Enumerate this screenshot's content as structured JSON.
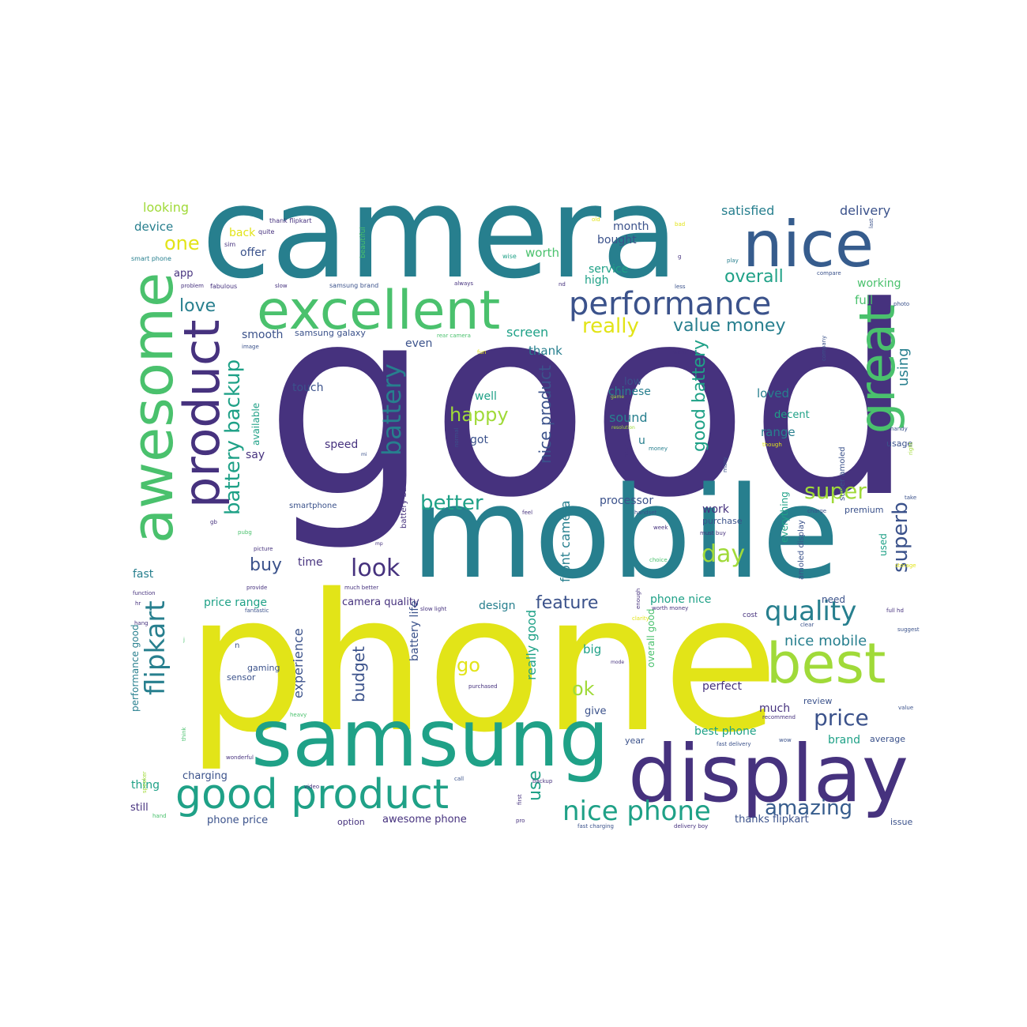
{
  "palette": {
    "indigo": "#46327e",
    "blue": "#365c8d",
    "steel": "#3b528b",
    "teal": "#277f8e",
    "sea": "#1fa187",
    "green": "#4ac16d",
    "lime": "#a0da39",
    "yellow": "#e2e418",
    "background": "#ffffff"
  },
  "words": [
    {
      "text": "good",
      "color": "indigo",
      "vertical": false
    },
    {
      "text": "phone",
      "color": "yellow",
      "vertical": false
    },
    {
      "text": "camera",
      "color": "teal",
      "vertical": false
    },
    {
      "text": "mobile",
      "color": "teal",
      "vertical": false
    },
    {
      "text": "samsung",
      "color": "sea",
      "vertical": false
    },
    {
      "text": "display",
      "color": "indigo",
      "vertical": false
    },
    {
      "text": "awesome",
      "color": "green",
      "vertical": true
    },
    {
      "text": "product",
      "color": "indigo",
      "vertical": true
    },
    {
      "text": "nice",
      "color": "blue",
      "vertical": false
    },
    {
      "text": "excellent",
      "color": "green",
      "vertical": false
    },
    {
      "text": "best",
      "color": "lime",
      "vertical": false
    },
    {
      "text": "great",
      "color": "green",
      "vertical": true
    },
    {
      "text": "performance",
      "color": "steel",
      "vertical": false
    },
    {
      "text": "good product",
      "color": "sea",
      "vertical": false
    },
    {
      "text": "flipkart",
      "color": "teal",
      "vertical": true
    },
    {
      "text": "nice phone",
      "color": "sea",
      "vertical": false
    },
    {
      "text": "quality",
      "color": "teal",
      "vertical": false
    },
    {
      "text": "battery backup",
      "color": "sea",
      "vertical": true
    },
    {
      "text": "battery",
      "color": "teal",
      "vertical": true
    },
    {
      "text": "better",
      "color": "sea",
      "vertical": false
    },
    {
      "text": "price",
      "color": "steel",
      "vertical": false
    },
    {
      "text": "amazing",
      "color": "blue",
      "vertical": false
    },
    {
      "text": "look",
      "color": "indigo",
      "vertical": false
    },
    {
      "text": "day",
      "color": "lime",
      "vertical": false
    },
    {
      "text": "super",
      "color": "lime",
      "vertical": false
    },
    {
      "text": "superb",
      "color": "steel",
      "vertical": true
    },
    {
      "text": "happy",
      "color": "lime",
      "vertical": false
    },
    {
      "text": "nice product",
      "color": "steel",
      "vertical": true
    },
    {
      "text": "good battery",
      "color": "sea",
      "vertical": true
    },
    {
      "text": "value money",
      "color": "teal",
      "vertical": false
    },
    {
      "text": "really",
      "color": "yellow",
      "vertical": false
    },
    {
      "text": "overall",
      "color": "sea",
      "vertical": false
    },
    {
      "text": "love",
      "color": "teal",
      "vertical": false
    },
    {
      "text": "buy",
      "color": "steel",
      "vertical": false
    },
    {
      "text": "one",
      "color": "yellow",
      "vertical": false
    },
    {
      "text": "feature",
      "color": "steel",
      "vertical": false
    },
    {
      "text": "budget",
      "color": "steel",
      "vertical": true
    },
    {
      "text": "go",
      "color": "yellow",
      "vertical": false
    },
    {
      "text": "ok",
      "color": "lime",
      "vertical": false
    },
    {
      "text": "use",
      "color": "sea",
      "vertical": true
    },
    {
      "text": "using",
      "color": "teal",
      "vertical": true
    },
    {
      "text": "nice mobile",
      "color": "teal",
      "vertical": false
    },
    {
      "text": "experience",
      "color": "steel",
      "vertical": true
    },
    {
      "text": "front camera",
      "color": "teal",
      "vertical": true
    },
    {
      "text": "really good",
      "color": "sea",
      "vertical": true
    },
    {
      "text": "satisfied",
      "color": "teal",
      "vertical": false
    },
    {
      "text": "delivery",
      "color": "steel",
      "vertical": false
    },
    {
      "text": "looking",
      "color": "lime",
      "vertical": false
    },
    {
      "text": "device",
      "color": "teal",
      "vertical": false
    },
    {
      "text": "back",
      "color": "yellow",
      "vertical": false
    },
    {
      "text": "offer",
      "color": "steel",
      "vertical": false
    },
    {
      "text": "app",
      "color": "indigo",
      "vertical": false
    },
    {
      "text": "month",
      "color": "steel",
      "vertical": false
    },
    {
      "text": "bought",
      "color": "steel",
      "vertical": false
    },
    {
      "text": "worth",
      "color": "green",
      "vertical": false
    },
    {
      "text": "service",
      "color": "sea",
      "vertical": false
    },
    {
      "text": "high",
      "color": "sea",
      "vertical": false
    },
    {
      "text": "working",
      "color": "green",
      "vertical": false
    },
    {
      "text": "full",
      "color": "green",
      "vertical": false
    },
    {
      "text": "screen",
      "color": "sea",
      "vertical": false
    },
    {
      "text": "thank",
      "color": "teal",
      "vertical": false
    },
    {
      "text": "even",
      "color": "steel",
      "vertical": false
    },
    {
      "text": "smooth",
      "color": "steel",
      "vertical": false
    },
    {
      "text": "samsung galaxy",
      "color": "steel",
      "vertical": false
    },
    {
      "text": "touch",
      "color": "steel",
      "vertical": false
    },
    {
      "text": "well",
      "color": "sea",
      "vertical": false
    },
    {
      "text": "low",
      "color": "steel",
      "vertical": false
    },
    {
      "text": "chinese",
      "color": "teal",
      "vertical": false
    },
    {
      "text": "sound",
      "color": "teal",
      "vertical": false
    },
    {
      "text": "loved",
      "color": "teal",
      "vertical": false
    },
    {
      "text": "decent",
      "color": "sea",
      "vertical": false
    },
    {
      "text": "range",
      "color": "teal",
      "vertical": false
    },
    {
      "text": "speed",
      "color": "indigo",
      "vertical": false
    },
    {
      "text": "got",
      "color": "steel",
      "vertical": false
    },
    {
      "text": "u",
      "color": "teal",
      "vertical": false
    },
    {
      "text": "available",
      "color": "sea",
      "vertical": true
    },
    {
      "text": "say",
      "color": "indigo",
      "vertical": false
    },
    {
      "text": "smartphone",
      "color": "steel",
      "vertical": false
    },
    {
      "text": "processor",
      "color": "steel",
      "vertical": false
    },
    {
      "text": "work",
      "color": "indigo",
      "vertical": false
    },
    {
      "text": "purchase",
      "color": "steel",
      "vertical": false
    },
    {
      "text": "premium",
      "color": "steel",
      "vertical": false
    },
    {
      "text": "usage",
      "color": "steel",
      "vertical": false
    },
    {
      "text": "used",
      "color": "sea",
      "vertical": true
    },
    {
      "text": "everything",
      "color": "sea",
      "vertical": true
    },
    {
      "text": "amoled display",
      "color": "steel",
      "vertical": true
    },
    {
      "text": "super amoled",
      "color": "steel",
      "vertical": true
    },
    {
      "text": "time",
      "color": "indigo",
      "vertical": false
    },
    {
      "text": "fast",
      "color": "teal",
      "vertical": false
    },
    {
      "text": "price range",
      "color": "sea",
      "vertical": false
    },
    {
      "text": "camera quality",
      "color": "indigo",
      "vertical": false
    },
    {
      "text": "design",
      "color": "teal",
      "vertical": false
    },
    {
      "text": "phone nice",
      "color": "sea",
      "vertical": false
    },
    {
      "text": "need",
      "color": "steel",
      "vertical": false
    },
    {
      "text": "cost",
      "color": "indigo",
      "vertical": false
    },
    {
      "text": "performance good",
      "color": "teal",
      "vertical": true
    },
    {
      "text": "gaming",
      "color": "steel",
      "vertical": false
    },
    {
      "text": "sensor",
      "color": "steel",
      "vertical": false
    },
    {
      "text": "n",
      "color": "steel",
      "vertical": false
    },
    {
      "text": "battery life",
      "color": "steel",
      "vertical": true
    },
    {
      "text": "overall good",
      "color": "green",
      "vertical": true
    },
    {
      "text": "big",
      "color": "sea",
      "vertical": false
    },
    {
      "text": "perfect",
      "color": "indigo",
      "vertical": false
    },
    {
      "text": "much",
      "color": "indigo",
      "vertical": false
    },
    {
      "text": "review",
      "color": "steel",
      "vertical": false
    },
    {
      "text": "give",
      "color": "steel",
      "vertical": false
    },
    {
      "text": "best phone",
      "color": "sea",
      "vertical": false
    },
    {
      "text": "year",
      "color": "steel",
      "vertical": false
    },
    {
      "text": "brand",
      "color": "sea",
      "vertical": false
    },
    {
      "text": "average",
      "color": "steel",
      "vertical": false
    },
    {
      "text": "thing",
      "color": "sea",
      "vertical": false
    },
    {
      "text": "charging",
      "color": "steel",
      "vertical": false
    },
    {
      "text": "still",
      "color": "indigo",
      "vertical": false
    },
    {
      "text": "phone price",
      "color": "steel",
      "vertical": false
    },
    {
      "text": "option",
      "color": "indigo",
      "vertical": false
    },
    {
      "text": "awesome phone",
      "color": "indigo",
      "vertical": false
    },
    {
      "text": "thanks flipkart",
      "color": "steel",
      "vertical": false
    },
    {
      "text": "issue",
      "color": "steel",
      "vertical": false
    },
    {
      "text": "battery back",
      "color": "indigo",
      "vertical": true
    },
    {
      "text": "thank flipkart",
      "color": "indigo",
      "vertical": false
    },
    {
      "text": "quite",
      "color": "indigo",
      "vertical": false
    },
    {
      "text": "sim",
      "color": "indigo",
      "vertical": false
    },
    {
      "text": "smart phone",
      "color": "teal",
      "vertical": false
    },
    {
      "text": "problem",
      "color": "indigo",
      "vertical": false
    },
    {
      "text": "fabulous",
      "color": "indigo",
      "vertical": false
    },
    {
      "text": "slow",
      "color": "indigo",
      "vertical": false
    },
    {
      "text": "samsung brand",
      "color": "steel",
      "vertical": false
    },
    {
      "text": "beautiful",
      "color": "green",
      "vertical": true
    },
    {
      "text": "always",
      "color": "indigo",
      "vertical": false
    },
    {
      "text": "nd",
      "color": "indigo",
      "vertical": false
    },
    {
      "text": "wise",
      "color": "sea",
      "vertical": false
    },
    {
      "text": "old",
      "color": "yellow",
      "vertical": false
    },
    {
      "text": "bad",
      "color": "yellow",
      "vertical": false
    },
    {
      "text": "g",
      "color": "indigo",
      "vertical": false
    },
    {
      "text": "less",
      "color": "steel",
      "vertical": false
    },
    {
      "text": "play",
      "color": "teal",
      "vertical": false
    },
    {
      "text": "compare",
      "color": "steel",
      "vertical": false
    },
    {
      "text": "photo",
      "color": "steel",
      "vertical": false
    },
    {
      "text": "last",
      "color": "steel",
      "vertical": true
    },
    {
      "text": "image",
      "color": "steel",
      "vertical": false
    },
    {
      "text": "rear camera",
      "color": "green",
      "vertical": false
    },
    {
      "text": "want",
      "color": "indigo",
      "vertical": false
    },
    {
      "text": "game",
      "color": "lime",
      "vertical": false
    },
    {
      "text": "resolution",
      "color": "lime",
      "vertical": false
    },
    {
      "text": "though",
      "color": "yellow",
      "vertical": false
    },
    {
      "text": "company",
      "color": "steel",
      "vertical": true
    },
    {
      "text": "handy",
      "color": "steel",
      "vertical": false
    },
    {
      "text": "right",
      "color": "lime",
      "vertical": true
    },
    {
      "text": "mi",
      "color": "steel",
      "vertical": false
    },
    {
      "text": "normal",
      "color": "steel",
      "vertical": true
    },
    {
      "text": "hour",
      "color": "indigo",
      "vertical": true
    },
    {
      "text": "money",
      "color": "teal",
      "vertical": false
    },
    {
      "text": "many",
      "color": "steel",
      "vertical": true
    },
    {
      "text": "take",
      "color": "steel",
      "vertical": false
    },
    {
      "text": "charge",
      "color": "steel",
      "vertical": false
    },
    {
      "text": "week",
      "color": "indigo",
      "vertical": false
    },
    {
      "text": "handset",
      "color": "steel",
      "vertical": false
    },
    {
      "text": "must buy",
      "color": "indigo",
      "vertical": false
    },
    {
      "text": "feel",
      "color": "indigo",
      "vertical": false
    },
    {
      "text": "storage",
      "color": "yellow",
      "vertical": false
    },
    {
      "text": "choice",
      "color": "green",
      "vertical": false
    },
    {
      "text": "picture",
      "color": "indigo",
      "vertical": false
    },
    {
      "text": "mp",
      "color": "indigo",
      "vertical": false
    },
    {
      "text": "gb",
      "color": "indigo",
      "vertical": false
    },
    {
      "text": "pubg",
      "color": "green",
      "vertical": false
    },
    {
      "text": "provide",
      "color": "indigo",
      "vertical": false
    },
    {
      "text": "much better",
      "color": "indigo",
      "vertical": false
    },
    {
      "text": "function",
      "color": "indigo",
      "vertical": false
    },
    {
      "text": "hr",
      "color": "indigo",
      "vertical": false
    },
    {
      "text": "fantastic",
      "color": "steel",
      "vertical": false
    },
    {
      "text": "slow light",
      "color": "indigo",
      "vertical": false
    },
    {
      "text": "enough",
      "color": "indigo",
      "vertical": true
    },
    {
      "text": "worth money",
      "color": "indigo",
      "vertical": false
    },
    {
      "text": "clarity",
      "color": "yellow",
      "vertical": false
    },
    {
      "text": "clear",
      "color": "steel",
      "vertical": false
    },
    {
      "text": "full hd",
      "color": "indigo",
      "vertical": false
    },
    {
      "text": "suggest",
      "color": "steel",
      "vertical": false
    },
    {
      "text": "hang",
      "color": "indigo",
      "vertical": false
    },
    {
      "text": "j",
      "color": "green",
      "vertical": false
    },
    {
      "text": "mode",
      "color": "indigo",
      "vertical": false
    },
    {
      "text": "purchased",
      "color": "indigo",
      "vertical": false
    },
    {
      "text": "recommend",
      "color": "indigo",
      "vertical": false
    },
    {
      "text": "value",
      "color": "steel",
      "vertical": false
    },
    {
      "text": "heavy",
      "color": "green",
      "vertical": false
    },
    {
      "text": "think",
      "color": "green",
      "vertical": true
    },
    {
      "text": "speaker",
      "color": "lime",
      "vertical": true
    },
    {
      "text": "wonderful",
      "color": "indigo",
      "vertical": false
    },
    {
      "text": "fast delivery",
      "color": "steel",
      "vertical": false
    },
    {
      "text": "wow",
      "color": "steel",
      "vertical": false
    },
    {
      "text": "call",
      "color": "steel",
      "vertical": false
    },
    {
      "text": "video",
      "color": "indigo",
      "vertical": false
    },
    {
      "text": "backup",
      "color": "indigo",
      "vertical": false
    },
    {
      "text": "first",
      "color": "indigo",
      "vertical": true
    },
    {
      "text": "pro",
      "color": "indigo",
      "vertical": false
    },
    {
      "text": "fast charging",
      "color": "steel",
      "vertical": false
    },
    {
      "text": "delivery boy",
      "color": "indigo",
      "vertical": false
    },
    {
      "text": "hand",
      "color": "green",
      "vertical": false
    },
    {
      "text": "fun",
      "color": "yellow",
      "vertical": false
    }
  ]
}
